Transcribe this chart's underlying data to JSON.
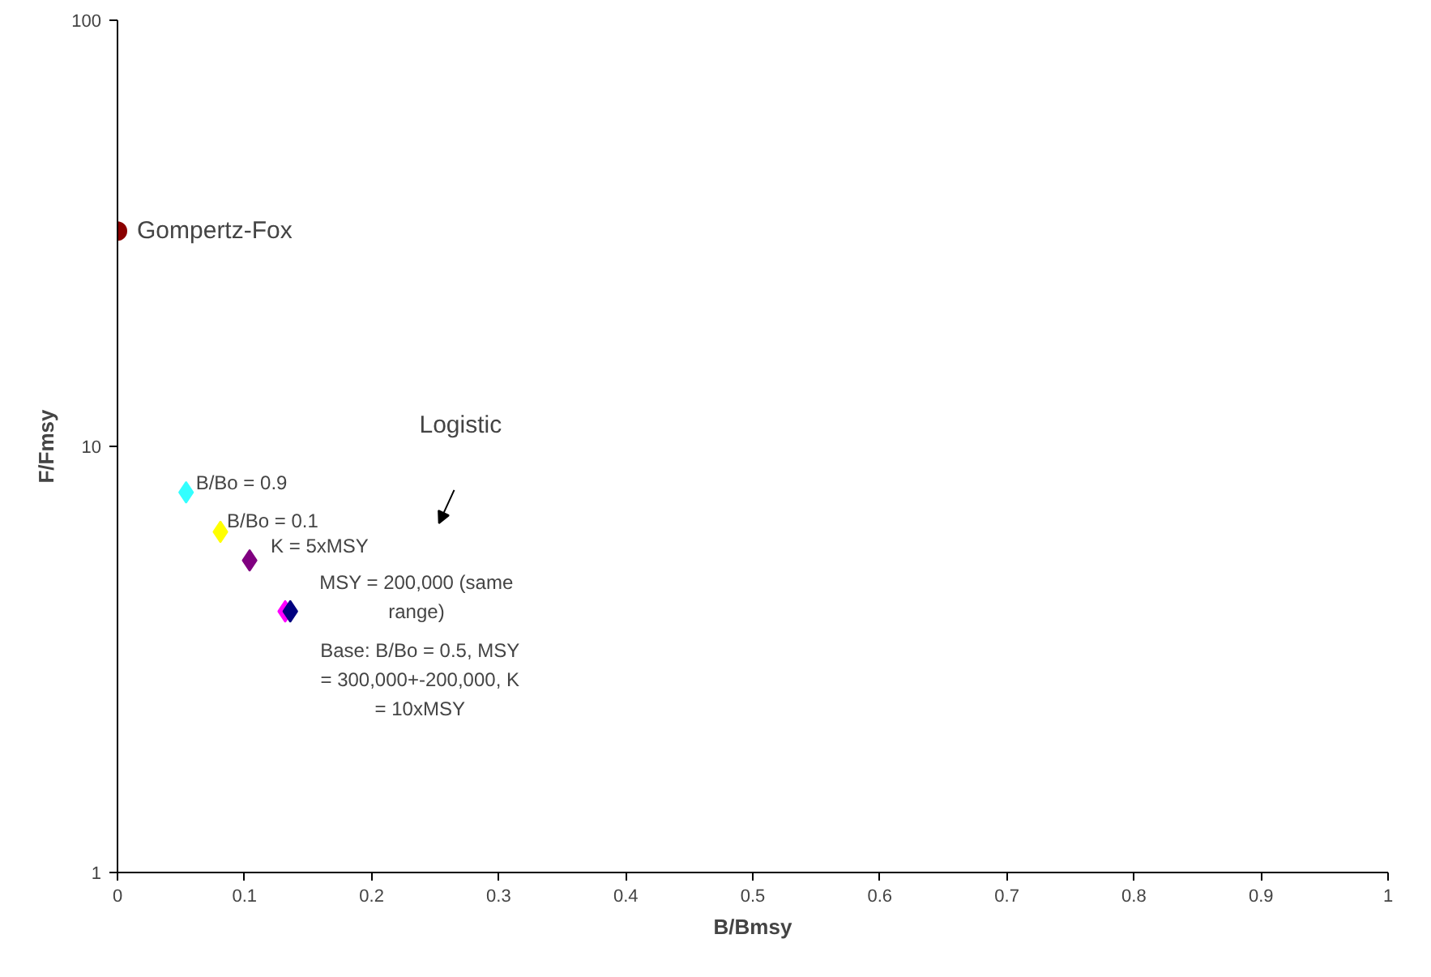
{
  "chart_data": {
    "type": "scatter",
    "xlabel": "B/Bmsy",
    "ylabel": "F/Fmsy",
    "log": "y",
    "xlim": [
      0,
      1
    ],
    "xticks": [
      0,
      0.1,
      0.2,
      0.3,
      0.4,
      0.5,
      0.6,
      0.7,
      0.8,
      0.9,
      1
    ],
    "ylim": [
      1,
      100
    ],
    "yticks": [
      1,
      10,
      100
    ],
    "grid": false,
    "legend": false,
    "series": [
      {
        "name": "Gompertz-Fox",
        "marker": "circle",
        "color": "#8b0000",
        "x": [
          0
        ],
        "values": [
          32
        ]
      },
      {
        "name": "Logistic",
        "marker": "diamond",
        "colors": [
          "#33ffff",
          "#ffff00",
          "#800080",
          "#ff00ff",
          "#000080"
        ],
        "x": [
          0.054,
          0.081,
          0.104,
          0.132,
          0.136
        ],
        "values": [
          7.8,
          6.3,
          5.4,
          4.1,
          4.1
        ]
      }
    ],
    "annotations": [
      {
        "text": "B/Bo = 0.9",
        "x": 0.054,
        "y": 7.8
      },
      {
        "text": "B/Bo = 0.1",
        "x": 0.081,
        "y": 6.3
      },
      {
        "text": "K = 5xMSY",
        "x": 0.104,
        "y": 5.4
      },
      {
        "text": "MSY = 200,000 (same\nrange)",
        "x": 0.132,
        "y": 4.1
      },
      {
        "text": "Base: B/Bo = 0.5, MSY\n= 300,000+-200,000, K\n= 10xMSY",
        "x": 0.136,
        "y": 4.1
      }
    ]
  }
}
